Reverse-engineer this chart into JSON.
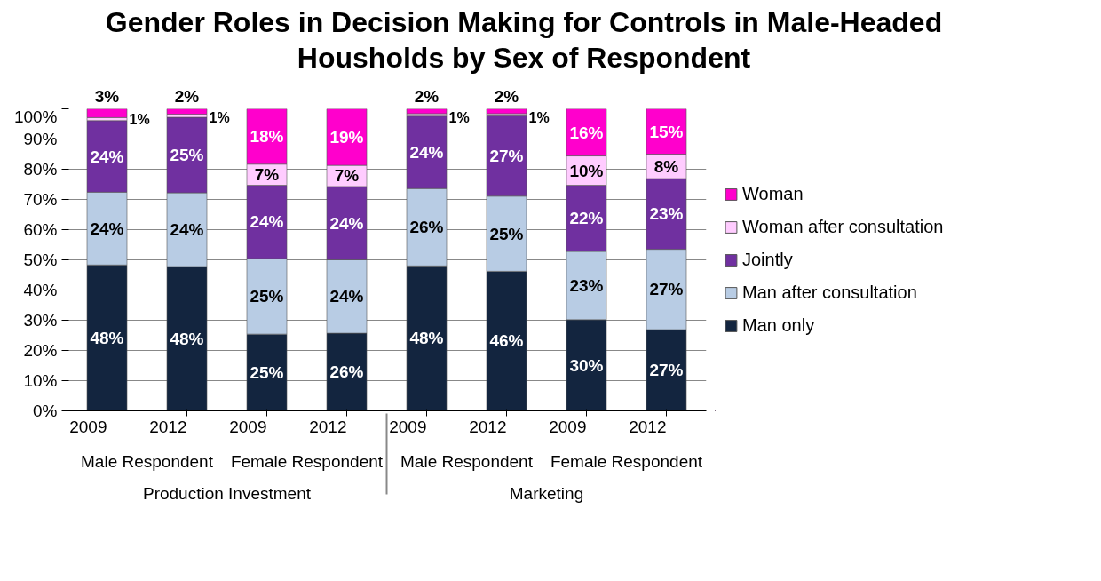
{
  "chart_data": {
    "type": "bar",
    "stacked": true,
    "title": "Gender Roles in Decision Making for Controls in Male-Headed Housholds by Sex of Respondent",
    "categories": [
      "2009",
      "2012",
      "2009",
      "2012",
      "2009",
      "2012",
      "2009",
      "2012"
    ],
    "annotations": [
      "Male Respondent",
      "Female Respondent",
      "Male Respondent",
      "Female Respondent",
      "Production Investment",
      "Marketing"
    ],
    "series": [
      {
        "name": "Man only",
        "color": "#13253f",
        "values": [
          48.3,
          47.8,
          25.4,
          25.7,
          48.0,
          46.2,
          30.2,
          26.9
        ],
        "value_labels": [
          "48%",
          "48%",
          "25%",
          "26%",
          "48%",
          "46%",
          "30%",
          "27%"
        ]
      },
      {
        "name": "Man after consultation",
        "color": "#b8cce4",
        "values": [
          24.1,
          24.4,
          25.0,
          24.3,
          25.6,
          24.9,
          22.6,
          26.6
        ],
        "value_labels": [
          "24%",
          "24%",
          "25%",
          "24%",
          "26%",
          "25%",
          "23%",
          "27%"
        ]
      },
      {
        "name": "Jointly",
        "color": "#7030a0",
        "values": [
          23.7,
          25.0,
          24.3,
          24.3,
          24.0,
          26.6,
          21.9,
          23.4
        ],
        "value_labels": [
          "24%",
          "25%",
          "24%",
          "24%",
          "24%",
          "27%",
          "22%",
          "23%"
        ]
      },
      {
        "name": "Woman after consultation",
        "color": "#ffccff",
        "values": [
          1.0,
          1.0,
          7.0,
          7.0,
          0.8,
          0.7,
          9.7,
          8.1
        ],
        "value_labels": [
          "1%",
          "1%",
          "7%",
          "7%",
          "1%",
          "1%",
          "10%",
          "8%"
        ]
      },
      {
        "name": "Woman",
        "color": "#ff00cc",
        "values": [
          2.9,
          1.8,
          18.3,
          18.7,
          1.6,
          1.6,
          15.6,
          15.0
        ],
        "value_labels": [
          "3%",
          "2%",
          "18%",
          "19%",
          "2%",
          "2%",
          "16%",
          "15%"
        ]
      }
    ],
    "ylim": [
      0,
      100
    ],
    "yticks": [
      {
        "value": 0,
        "label": "0%"
      },
      {
        "value": 10,
        "label": "10%"
      },
      {
        "value": 20,
        "label": "20%"
      },
      {
        "value": 30,
        "label": "30%"
      },
      {
        "value": 40,
        "label": "40%"
      },
      {
        "value": 50,
        "label": "50%"
      },
      {
        "value": 60,
        "label": "60%"
      },
      {
        "value": 70,
        "label": "70%"
      },
      {
        "value": 80,
        "label": "80%"
      },
      {
        "value": 90,
        "label": "90%"
      },
      {
        "value": 100,
        "label": "100%"
      }
    ],
    "grid": "y",
    "legend": "right"
  }
}
